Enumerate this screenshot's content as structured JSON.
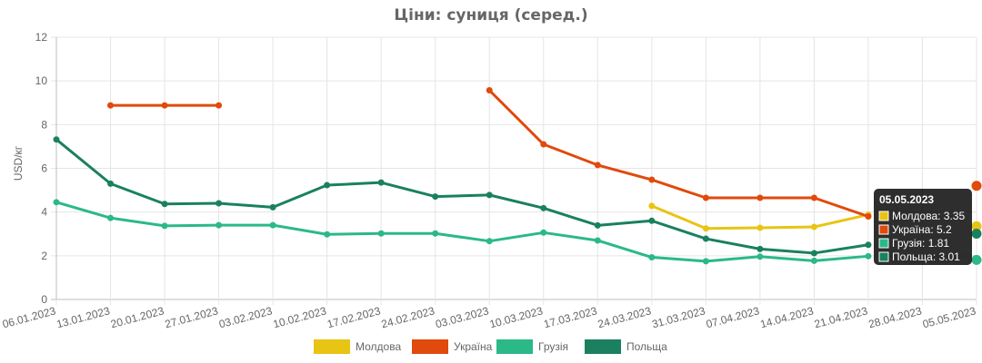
{
  "chart_data": {
    "type": "line",
    "title": "Ціни: суниця (серед.)",
    "ylabel": "USD/кг",
    "xlabel": "",
    "ylim": [
      0,
      12
    ],
    "yticks": [
      0,
      2,
      4,
      6,
      8,
      10,
      12
    ],
    "grid": true,
    "legend_position": "bottom",
    "categories": [
      "06.01.2023",
      "13.01.2023",
      "20.01.2023",
      "27.01.2023",
      "03.02.2023",
      "10.02.2023",
      "17.02.2023",
      "24.02.2023",
      "03.03.2023",
      "10.03.2023",
      "17.03.2023",
      "24.03.2023",
      "31.03.2023",
      "07.04.2023",
      "14.04.2023",
      "21.04.2023",
      "28.04.2023",
      "05.05.2023"
    ],
    "series": [
      {
        "name": "Молдова",
        "color": "#e8c414",
        "values": [
          null,
          null,
          null,
          null,
          null,
          null,
          null,
          null,
          null,
          null,
          null,
          4.28,
          3.25,
          3.28,
          3.32,
          3.88,
          null,
          3.35
        ]
      },
      {
        "name": "Україна",
        "color": "#e04a0c",
        "values": [
          null,
          8.88,
          8.88,
          8.88,
          null,
          null,
          null,
          null,
          9.57,
          7.1,
          6.15,
          5.48,
          4.65,
          4.65,
          4.65,
          3.8,
          null,
          5.2
        ]
      },
      {
        "name": "Грузія",
        "color": "#2bb987",
        "values": [
          4.45,
          3.73,
          3.37,
          3.4,
          3.4,
          2.98,
          3.02,
          3.02,
          2.67,
          3.06,
          2.7,
          1.93,
          1.75,
          1.96,
          1.77,
          1.98,
          null,
          1.81
        ]
      },
      {
        "name": "Польща",
        "color": "#1a8060",
        "values": [
          7.32,
          5.3,
          4.37,
          4.4,
          4.22,
          5.23,
          5.35,
          4.71,
          4.78,
          4.18,
          3.39,
          3.6,
          2.78,
          2.31,
          2.12,
          2.5,
          null,
          3.01
        ]
      }
    ],
    "tooltip": {
      "title": "05.05.2023",
      "items": [
        "Молдова: 3.35",
        "Україна: 5.2",
        "Грузія: 1.81",
        "Польща: 3.01"
      ]
    }
  }
}
